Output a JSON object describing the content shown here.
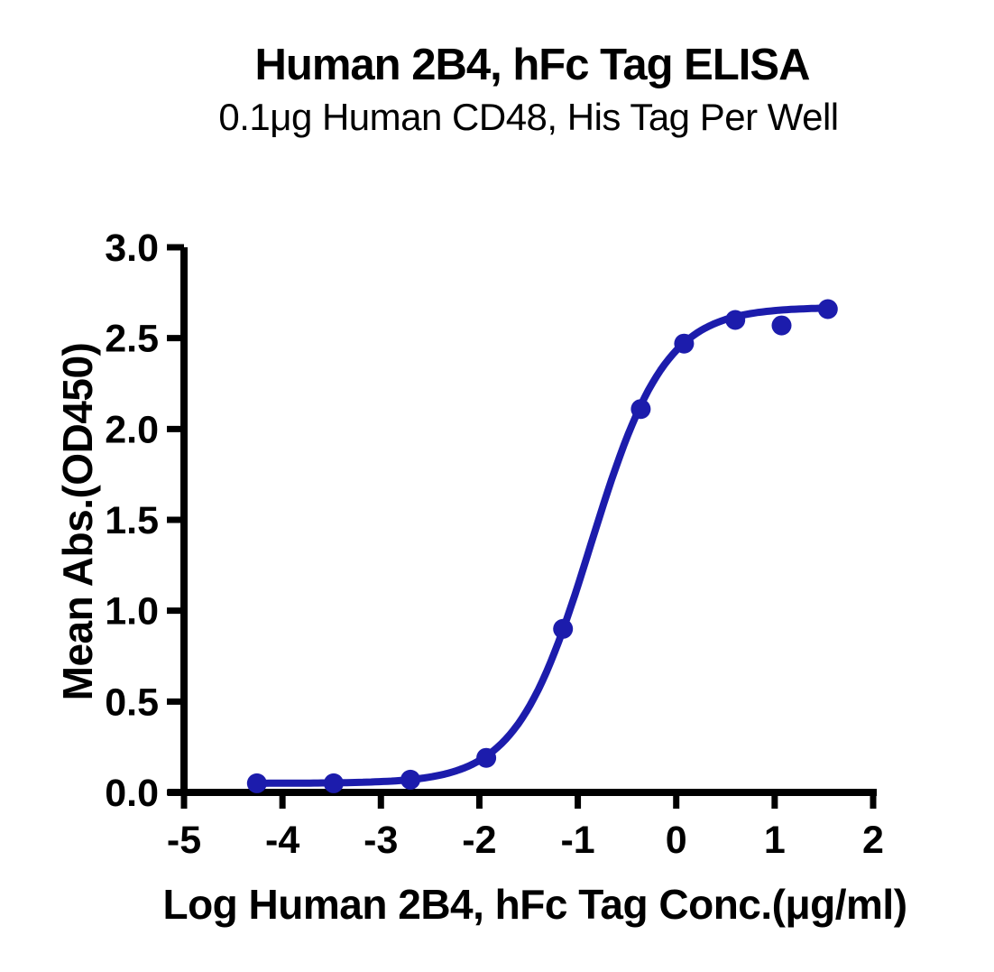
{
  "chart_data": {
    "type": "scatter",
    "title": "Human 2B4, hFc Tag ELISA",
    "subtitle": "0.1μg Human CD48, His Tag Per Well",
    "xlabel": "Log Human 2B4, hFc Tag Conc.(μg/ml)",
    "ylabel": "Mean Abs.(OD450)",
    "xlim": [
      -5,
      2
    ],
    "ylim": [
      0,
      3
    ],
    "x_ticks": [
      -5,
      -4,
      -3,
      -2,
      -1,
      0,
      1,
      2
    ],
    "x_tick_labels": [
      "-5",
      "-4",
      "-3",
      "-2",
      "-1",
      "0",
      "1",
      "2"
    ],
    "y_ticks": [
      0,
      0.5,
      1,
      1.5,
      2,
      2.5,
      3
    ],
    "y_tick_labels": [
      "0.0",
      "0.5",
      "1.0",
      "1.5",
      "2.0",
      "2.5",
      "3.0"
    ],
    "grid": false,
    "legend": "none",
    "axis_color": "#000000",
    "series": [
      {
        "name": "Human 2B4, hFc Tag",
        "color": "#1c1cac",
        "marker": "circle",
        "points": [
          [
            -4.26,
            0.05
          ],
          [
            -3.48,
            0.05
          ],
          [
            -2.7,
            0.07
          ],
          [
            -1.93,
            0.19
          ],
          [
            -1.15,
            0.9
          ],
          [
            -0.36,
            2.11
          ],
          [
            0.08,
            2.47
          ],
          [
            0.6,
            2.6
          ],
          [
            1.07,
            2.57
          ],
          [
            1.54,
            2.66
          ]
        ]
      }
    ],
    "fit_curve": {
      "model": "4PL",
      "bottom": 0.05,
      "top": 2.67,
      "log_ec50": -0.87,
      "hill_slope": 1.15,
      "x_start": -4.26,
      "x_end": 1.54
    }
  }
}
